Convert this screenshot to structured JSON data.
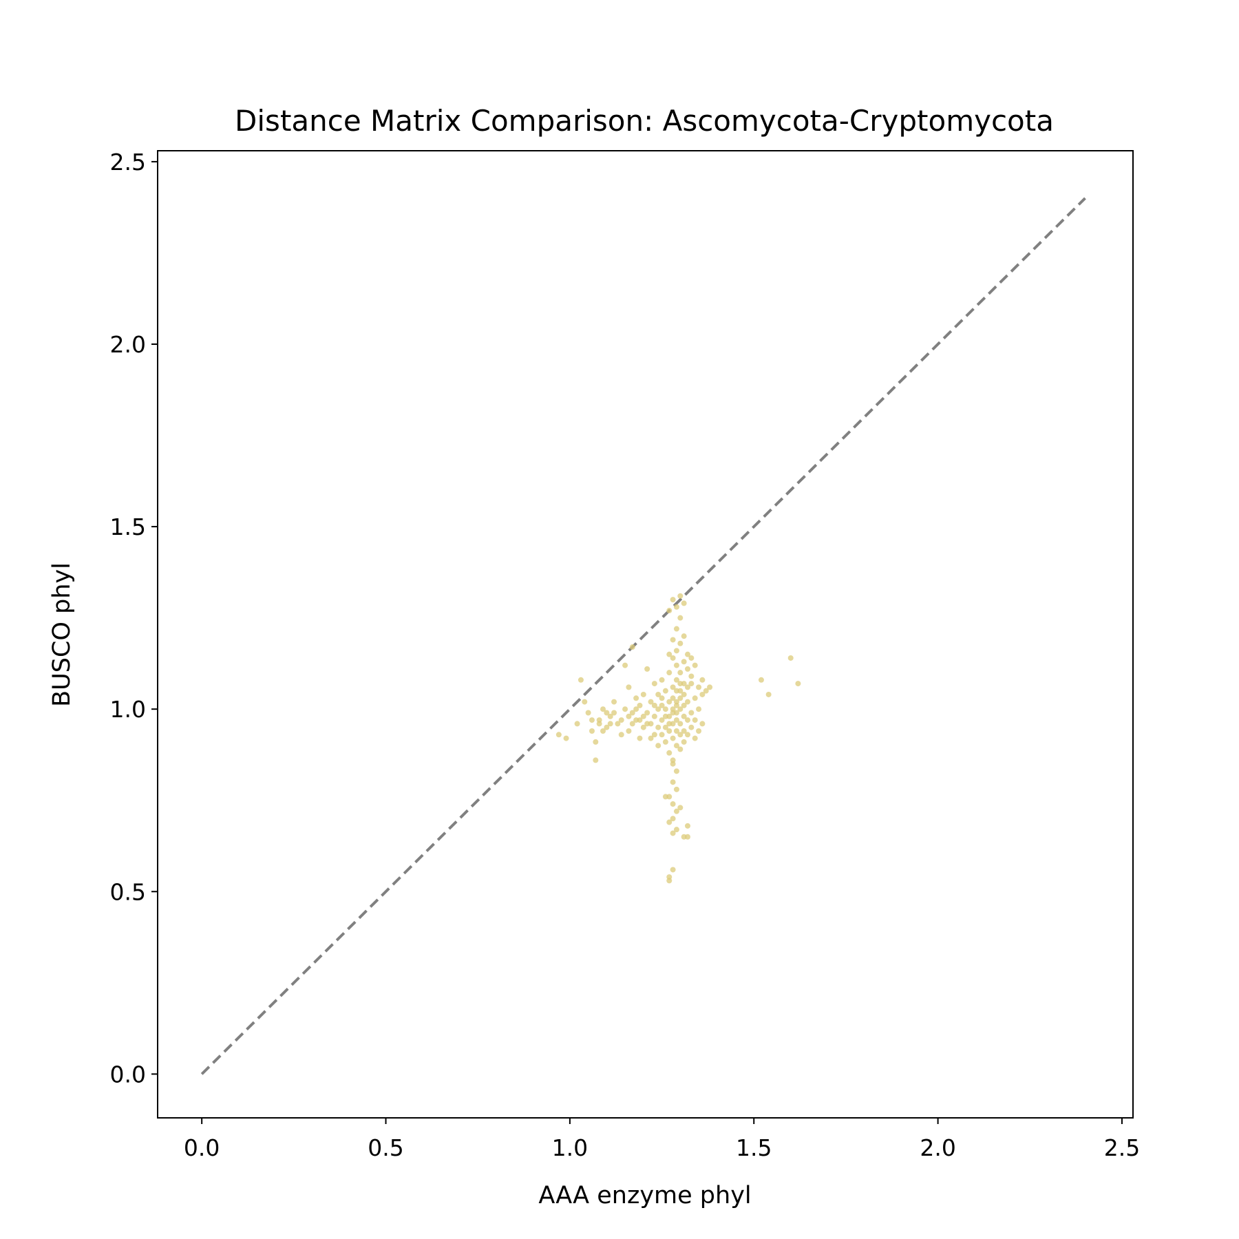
{
  "chart_data": {
    "type": "scatter",
    "title": "Distance Matrix Comparison: Ascomycota-Cryptomycota",
    "xlabel": "AAA enzyme phyl",
    "ylabel": "BUSCO phyl",
    "xlim": [
      -0.12,
      2.53
    ],
    "ylim": [
      -0.12,
      2.53
    ],
    "xticks": [
      "0.0",
      "0.5",
      "1.0",
      "1.5",
      "2.0",
      "2.5"
    ],
    "yticks": [
      "0.0",
      "0.5",
      "1.0",
      "1.5",
      "2.0",
      "2.5"
    ],
    "grid": false,
    "legend": "none",
    "point_color": "#dccb7a",
    "reference_line": {
      "style": "dashed",
      "color": "#808080",
      "x": [
        0.0,
        2.4
      ],
      "y": [
        0.0,
        2.4
      ]
    },
    "series": [
      {
        "points": [
          [
            0.97,
            0.93
          ],
          [
            0.99,
            0.92
          ],
          [
            1.02,
            0.96
          ],
          [
            1.03,
            1.08
          ],
          [
            1.04,
            1.02
          ],
          [
            1.05,
            0.99
          ],
          [
            1.06,
            0.94
          ],
          [
            1.07,
            0.91
          ],
          [
            1.07,
            0.86
          ],
          [
            1.08,
            0.97
          ],
          [
            1.09,
            1.0
          ],
          [
            1.1,
            0.95
          ],
          [
            1.11,
            0.98
          ],
          [
            1.12,
            1.02
          ],
          [
            1.13,
            0.96
          ],
          [
            1.14,
            0.93
          ],
          [
            1.15,
            1.0
          ],
          [
            1.15,
            1.12
          ],
          [
            1.16,
            1.06
          ],
          [
            1.16,
            0.94
          ],
          [
            1.17,
            0.99
          ],
          [
            1.17,
            1.17
          ],
          [
            1.18,
            1.03
          ],
          [
            1.18,
            0.97
          ],
          [
            1.19,
            0.92
          ],
          [
            1.19,
            1.01
          ],
          [
            1.2,
            0.95
          ],
          [
            1.2,
            1.04
          ],
          [
            1.21,
            0.99
          ],
          [
            1.21,
            1.11
          ],
          [
            1.22,
            0.96
          ],
          [
            1.22,
            0.92
          ],
          [
            1.22,
            1.02
          ],
          [
            1.23,
            0.98
          ],
          [
            1.23,
            1.07
          ],
          [
            1.23,
            0.93
          ],
          [
            1.24,
            1.0
          ],
          [
            1.24,
            0.95
          ],
          [
            1.24,
            0.9
          ],
          [
            1.25,
            1.03
          ],
          [
            1.25,
            0.97
          ],
          [
            1.25,
            1.08
          ],
          [
            1.25,
            0.93
          ],
          [
            1.26,
            1.0
          ],
          [
            1.26,
            0.95
          ],
          [
            1.26,
            1.05
          ],
          [
            1.26,
            0.91
          ],
          [
            1.27,
            0.98
          ],
          [
            1.27,
            1.02
          ],
          [
            1.27,
            0.88
          ],
          [
            1.27,
            1.1
          ],
          [
            1.27,
            0.94
          ],
          [
            1.28,
            1.0
          ],
          [
            1.28,
            0.96
          ],
          [
            1.28,
            1.06
          ],
          [
            1.28,
            0.92
          ],
          [
            1.28,
            1.14
          ],
          [
            1.28,
            0.85
          ],
          [
            1.28,
            1.03
          ],
          [
            1.29,
            0.99
          ],
          [
            1.29,
            1.08
          ],
          [
            1.29,
            0.94
          ],
          [
            1.29,
            1.02
          ],
          [
            1.29,
            0.9
          ],
          [
            1.29,
            1.12
          ],
          [
            1.29,
            0.97
          ],
          [
            1.29,
            1.05
          ],
          [
            1.3,
            1.0
          ],
          [
            1.3,
            0.93
          ],
          [
            1.3,
            1.07
          ],
          [
            1.3,
            0.96
          ],
          [
            1.3,
            1.03
          ],
          [
            1.3,
            0.89
          ],
          [
            1.3,
            1.1
          ],
          [
            1.31,
            0.98
          ],
          [
            1.31,
            1.04
          ],
          [
            1.31,
            0.94
          ],
          [
            1.31,
            1.01
          ],
          [
            1.31,
            0.91
          ],
          [
            1.31,
            1.13
          ],
          [
            1.32,
            0.97
          ],
          [
            1.32,
            1.06
          ],
          [
            1.32,
            0.93
          ],
          [
            1.32,
            1.02
          ],
          [
            1.33,
            0.99
          ],
          [
            1.33,
            1.09
          ],
          [
            1.33,
            0.95
          ],
          [
            1.34,
            1.03
          ],
          [
            1.34,
            0.97
          ],
          [
            1.34,
            0.92
          ],
          [
            1.35,
            1.0
          ],
          [
            1.35,
            1.06
          ],
          [
            1.36,
            0.96
          ],
          [
            1.36,
            1.04
          ],
          [
            1.37,
            1.05
          ],
          [
            1.35,
            0.94
          ],
          [
            1.33,
            1.07
          ],
          [
            1.32,
            1.11
          ],
          [
            1.31,
            1.07
          ],
          [
            1.3,
            1.05
          ],
          [
            1.29,
            1.01
          ],
          [
            1.28,
            0.99
          ],
          [
            1.27,
            0.96
          ],
          [
            1.26,
            0.98
          ],
          [
            1.25,
            1.01
          ],
          [
            1.24,
            1.04
          ],
          [
            1.23,
            1.01
          ],
          [
            1.21,
            0.96
          ],
          [
            1.2,
            0.98
          ],
          [
            1.19,
            0.97
          ],
          [
            1.18,
            1.0
          ],
          [
            1.17,
            0.96
          ],
          [
            1.16,
            0.98
          ],
          [
            1.14,
            0.97
          ],
          [
            1.12,
            0.99
          ],
          [
            1.11,
            0.96
          ],
          [
            1.1,
            0.99
          ],
          [
            1.08,
            0.96
          ],
          [
            1.06,
            0.97
          ],
          [
            1.09,
            0.94
          ],
          [
            1.28,
            1.3
          ],
          [
            1.29,
            1.28
          ],
          [
            1.3,
            1.31
          ],
          [
            1.31,
            1.29
          ],
          [
            1.27,
            1.27
          ],
          [
            1.29,
            1.22
          ],
          [
            1.3,
            1.25
          ],
          [
            1.28,
            1.19
          ],
          [
            1.3,
            1.18
          ],
          [
            1.29,
            1.16
          ],
          [
            1.31,
            1.2
          ],
          [
            1.27,
            1.15
          ],
          [
            1.32,
            1.15
          ],
          [
            1.28,
            0.86
          ],
          [
            1.29,
            0.83
          ],
          [
            1.28,
            0.8
          ],
          [
            1.29,
            0.78
          ],
          [
            1.27,
            0.76
          ],
          [
            1.28,
            0.74
          ],
          [
            1.29,
            0.72
          ],
          [
            1.3,
            0.73
          ],
          [
            1.28,
            0.7
          ],
          [
            1.27,
            0.69
          ],
          [
            1.29,
            0.67
          ],
          [
            1.31,
            0.65
          ],
          [
            1.32,
            0.65
          ],
          [
            1.32,
            0.68
          ],
          [
            1.28,
            0.66
          ],
          [
            1.26,
            0.76
          ],
          [
            1.27,
            0.54
          ],
          [
            1.28,
            0.56
          ],
          [
            1.27,
            0.53
          ],
          [
            1.52,
            1.08
          ],
          [
            1.54,
            1.04
          ],
          [
            1.6,
            1.14
          ],
          [
            1.62,
            1.07
          ],
          [
            1.38,
            1.06
          ],
          [
            1.36,
            1.08
          ],
          [
            1.34,
            1.12
          ],
          [
            1.33,
            1.14
          ]
        ]
      }
    ]
  }
}
